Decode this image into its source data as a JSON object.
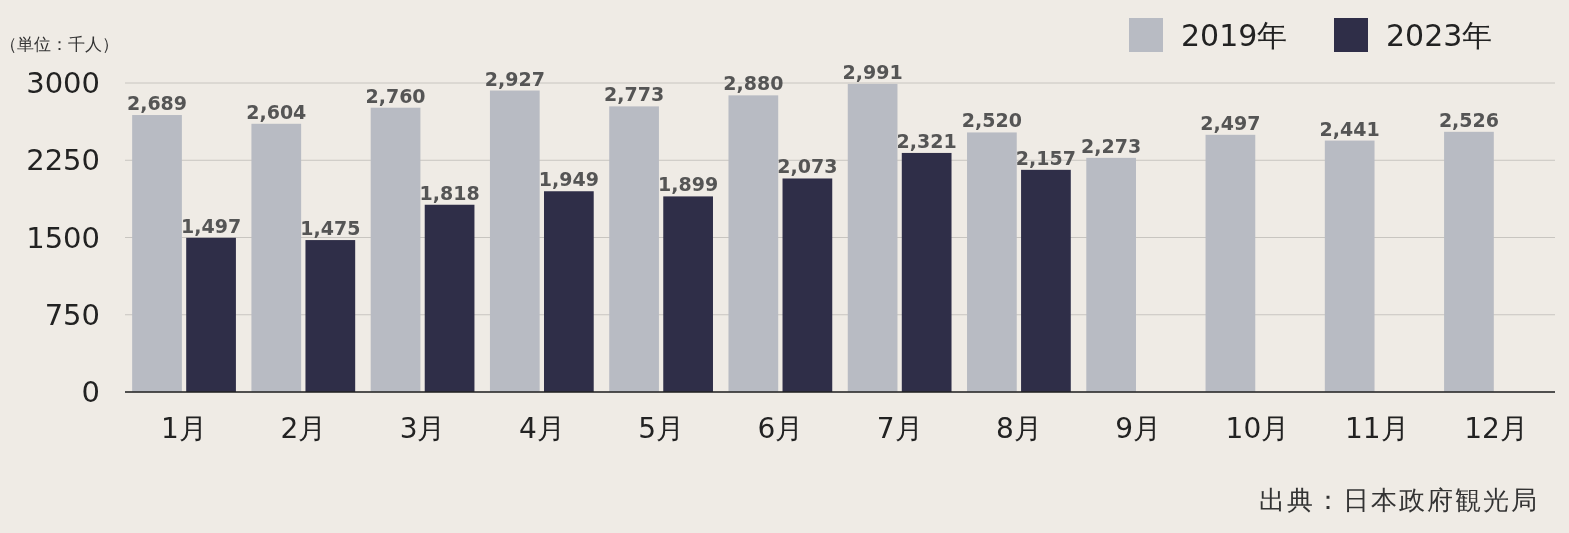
{
  "chart_data": {
    "type": "bar",
    "ylabel": "（単位：千人）",
    "annotations": [
      "出典：日本政府観光局"
    ],
    "categories": [
      "1月",
      "2月",
      "3月",
      "4月",
      "5月",
      "6月",
      "7月",
      "8月",
      "9月",
      "10月",
      "11月",
      "12月"
    ],
    "series": [
      {
        "name": "2019年",
        "color": "#b8bbc3",
        "values": [
          2689,
          2604,
          2760,
          2927,
          2773,
          2880,
          2991,
          2520,
          2273,
          2497,
          2441,
          2526
        ],
        "value_labels": [
          "2,689",
          "2,604",
          "2,760",
          "2,927",
          "2,773",
          "2,880",
          "2,991",
          "2,520",
          "2,273",
          "2,497",
          "2,441",
          "2,526"
        ]
      },
      {
        "name": "2023年",
        "color": "#2f2e48",
        "values": [
          1497,
          1475,
          1818,
          1949,
          1899,
          2073,
          2321,
          2157,
          null,
          null,
          null,
          null
        ],
        "value_labels": [
          "1,497",
          "1,475",
          "1,818",
          "1,949",
          "1,899",
          "2,073",
          "2,321",
          "2,157",
          null,
          null,
          null,
          null
        ]
      }
    ],
    "ylim": [
      0,
      3000
    ],
    "yticks": [
      0,
      750,
      1500,
      2250,
      3000
    ],
    "grid": "y",
    "legend": "top right"
  }
}
